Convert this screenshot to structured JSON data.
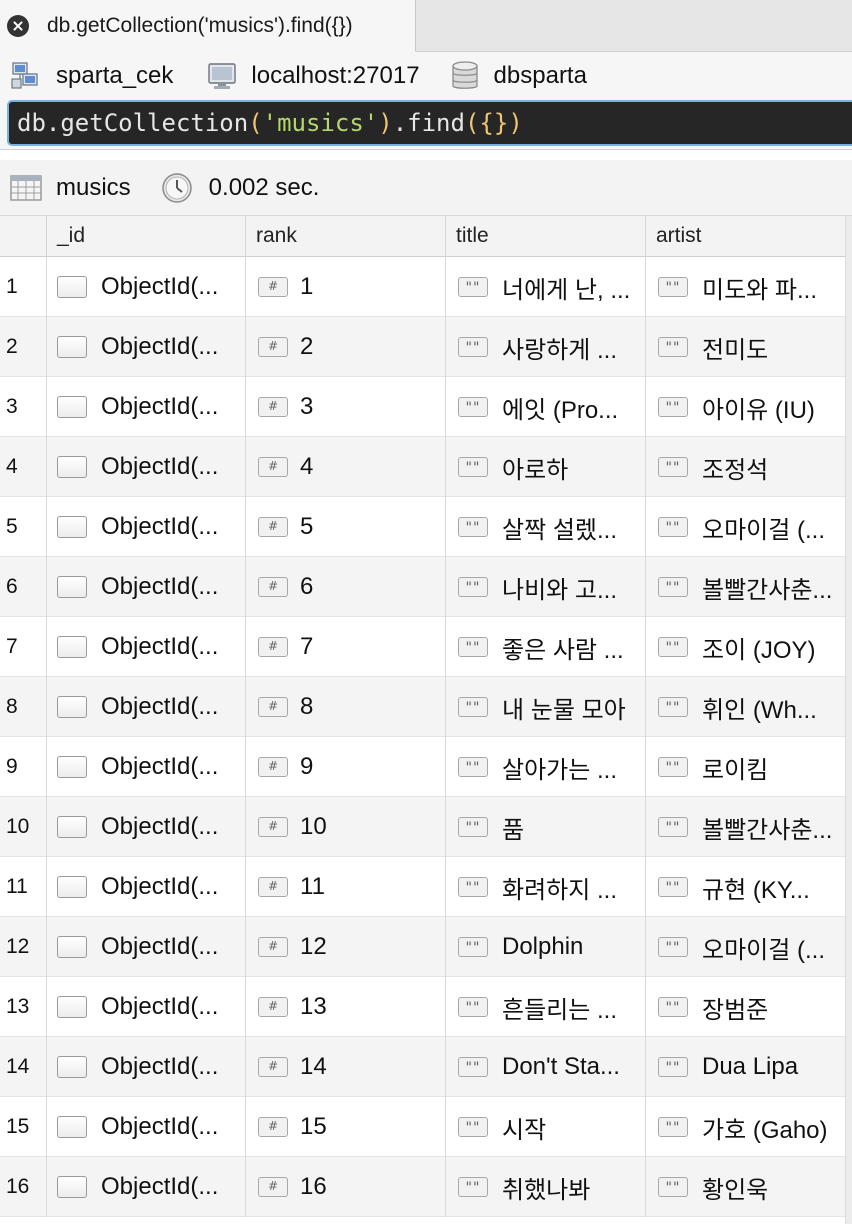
{
  "tab": {
    "title": "db.getCollection('musics').find({})"
  },
  "connection": {
    "name": "sparta_cek",
    "host": "localhost:27017",
    "database": "dbsparta"
  },
  "query": {
    "db": "db",
    "fn1": "getCollection",
    "collection": "'musics'",
    "fn2": "find",
    "arg": "{}"
  },
  "result": {
    "collection": "musics",
    "time": "0.002 sec."
  },
  "columns": [
    "_id",
    "rank",
    "title",
    "artist"
  ],
  "rows": [
    {
      "n": "1",
      "id": "ObjectId(...",
      "rank": "1",
      "title": "너에게 난, ...",
      "artist": "미도와 파..."
    },
    {
      "n": "2",
      "id": "ObjectId(...",
      "rank": "2",
      "title": "사랑하게 ...",
      "artist": "전미도"
    },
    {
      "n": "3",
      "id": "ObjectId(...",
      "rank": "3",
      "title": "에잇 (Pro...",
      "artist": "아이유 (IU)"
    },
    {
      "n": "4",
      "id": "ObjectId(...",
      "rank": "4",
      "title": "아로하",
      "artist": "조정석"
    },
    {
      "n": "5",
      "id": "ObjectId(...",
      "rank": "5",
      "title": "살짝 설렜...",
      "artist": "오마이걸 (..."
    },
    {
      "n": "6",
      "id": "ObjectId(...",
      "rank": "6",
      "title": "나비와 고...",
      "artist": "볼빨간사춘..."
    },
    {
      "n": "7",
      "id": "ObjectId(...",
      "rank": "7",
      "title": "좋은 사람 ...",
      "artist": "조이 (JOY)"
    },
    {
      "n": "8",
      "id": "ObjectId(...",
      "rank": "8",
      "title": "내 눈물 모아",
      "artist": "휘인 (Wh..."
    },
    {
      "n": "9",
      "id": "ObjectId(...",
      "rank": "9",
      "title": "살아가는 ...",
      "artist": "로이킴"
    },
    {
      "n": "10",
      "id": "ObjectId(...",
      "rank": "10",
      "title": "품",
      "artist": "볼빨간사춘..."
    },
    {
      "n": "11",
      "id": "ObjectId(...",
      "rank": "11",
      "title": "화려하지 ...",
      "artist": "규현 (KY..."
    },
    {
      "n": "12",
      "id": "ObjectId(...",
      "rank": "12",
      "title": "Dolphin",
      "artist": "오마이걸 (..."
    },
    {
      "n": "13",
      "id": "ObjectId(...",
      "rank": "13",
      "title": "흔들리는 ...",
      "artist": "장범준"
    },
    {
      "n": "14",
      "id": "ObjectId(...",
      "rank": "14",
      "title": "Don't Sta...",
      "artist": "Dua Lipa"
    },
    {
      "n": "15",
      "id": "ObjectId(...",
      "rank": "15",
      "title": "시작",
      "artist": "가호 (Gaho)"
    },
    {
      "n": "16",
      "id": "ObjectId(...",
      "rank": "16",
      "title": "취했나봐",
      "artist": "황인욱"
    }
  ],
  "icons": {
    "close": "close-icon",
    "connection": "network-computers-icon",
    "host": "monitor-icon",
    "database": "database-icon",
    "collection": "table-grid-icon",
    "time": "clock-icon",
    "objectid": "object-icon",
    "number": "number-icon",
    "string": "string-icon"
  },
  "colors": {
    "query_bg": "#262626",
    "query_border": "#7ab0e8",
    "string": "#b5d86a",
    "bracket": "#f0c674"
  }
}
